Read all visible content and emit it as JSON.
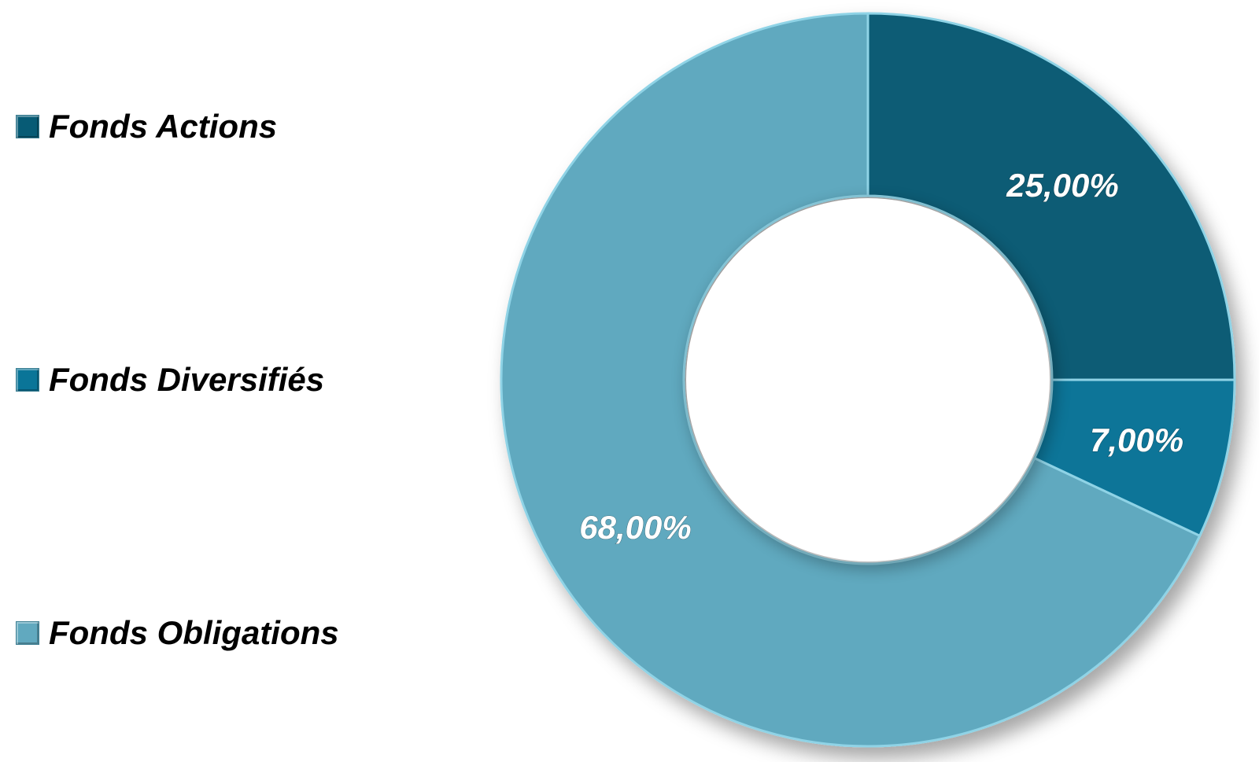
{
  "chart_data": {
    "type": "pie",
    "variant": "donut",
    "title": "",
    "categories": [
      "Fonds Actions",
      "Fonds Diversifiés",
      "Fonds Obligations"
    ],
    "values": [
      25,
      7,
      68
    ],
    "value_labels": [
      "25,00%",
      "7,00%",
      "68,00%"
    ],
    "colors": [
      "#075b75",
      "#0a7598",
      "#61a9bf"
    ],
    "legend_position": "left",
    "start_angle": "12 o'clock, clockwise"
  }
}
